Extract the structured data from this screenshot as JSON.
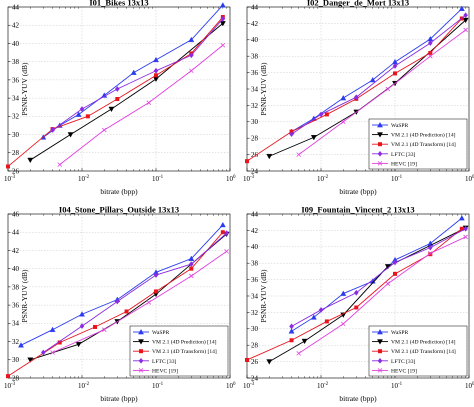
{
  "chart_data": [
    {
      "type": "line",
      "title": "I01_Bikes 13x13",
      "xlabel": "bitrate (bpp)",
      "ylabel": "PSNR-YUV (dB)",
      "xscale": "log",
      "xlim": [
        0.001,
        1
      ],
      "ylim": [
        26,
        44
      ],
      "xtick_base": "10",
      "xticks": [
        {
          "value": 0.001,
          "exp": "-3"
        },
        {
          "value": 0.01,
          "exp": "-2"
        },
        {
          "value": 0.1,
          "exp": "-1"
        },
        {
          "value": 1,
          "exp": "0"
        }
      ],
      "yticks": [
        26,
        28,
        30,
        32,
        34,
        36,
        38,
        40,
        42,
        44
      ],
      "grid": true,
      "legend_position": "none",
      "series": [
        {
          "name": "WaSPR",
          "color": "#2b3bf0",
          "marker": "triangle",
          "x": [
            0.003,
            0.005,
            0.009,
            0.02,
            0.05,
            0.1,
            0.3,
            0.8
          ],
          "y": [
            29.7,
            31.0,
            32.2,
            34.3,
            36.8,
            38.2,
            40.4,
            44.2
          ]
        },
        {
          "name": "VM 2.1 (4D Prediction) [14]",
          "color": "#000000",
          "marker": "triangle-down",
          "x": [
            0.002,
            0.007,
            0.025,
            0.1,
            0.8
          ],
          "y": [
            27.2,
            30.0,
            32.8,
            36.1,
            42.2
          ]
        },
        {
          "name": "VM 2.1 (4D Transform) [14]",
          "color": "#e8141e",
          "marker": "square",
          "x": [
            0.001,
            0.004,
            0.012,
            0.03,
            0.1,
            0.3,
            0.8
          ],
          "y": [
            26.5,
            30.6,
            32.0,
            33.9,
            36.5,
            38.9,
            42.9
          ]
        },
        {
          "name": "LFTC [33]",
          "color": "#8a2be2",
          "marker": "diamond",
          "x": [
            0.004,
            0.01,
            0.03,
            0.1,
            0.3,
            0.8
          ],
          "y": [
            30.5,
            32.8,
            35.0,
            37.0,
            38.7,
            42.7
          ]
        },
        {
          "name": "HEVC [19]",
          "color": "#e040e0",
          "marker": "x",
          "x": [
            0.005,
            0.02,
            0.08,
            0.3,
            0.8
          ],
          "y": [
            26.7,
            30.5,
            33.5,
            37.0,
            39.8
          ]
        }
      ]
    },
    {
      "type": "line",
      "title": "I02_Danger_de_Mort 13x13",
      "xlabel": "bitrate (bpp)",
      "ylabel": "PSNR-YUV (dB)",
      "xscale": "log",
      "xlim": [
        0.001,
        1
      ],
      "ylim": [
        24,
        44
      ],
      "xtick_base": "10",
      "xticks": [
        {
          "value": 0.001,
          "exp": "-3"
        },
        {
          "value": 0.01,
          "exp": "-2"
        },
        {
          "value": 0.1,
          "exp": "-1"
        },
        {
          "value": 1,
          "exp": "0"
        }
      ],
      "yticks": [
        24,
        26,
        28,
        30,
        32,
        34,
        36,
        38,
        40,
        42,
        44
      ],
      "grid": true,
      "legend_position": "bottom-right",
      "series": [
        {
          "name": "WaSPR",
          "color": "#2b3bf0",
          "marker": "triangle",
          "x": [
            0.004,
            0.008,
            0.02,
            0.05,
            0.1,
            0.3,
            0.8
          ],
          "y": [
            28.8,
            30.4,
            32.9,
            35.1,
            37.3,
            40.1,
            43.8
          ]
        },
        {
          "name": "VM 2.1 (4D Prediction) [14]",
          "color": "#000000",
          "marker": "triangle-down",
          "x": [
            0.002,
            0.008,
            0.03,
            0.1,
            0.9
          ],
          "y": [
            25.8,
            28.1,
            31.2,
            34.7,
            42.4
          ]
        },
        {
          "name": "VM 2.1 (4D Transform) [14]",
          "color": "#e8141e",
          "marker": "square",
          "x": [
            0.001,
            0.004,
            0.012,
            0.03,
            0.1,
            0.3,
            0.8
          ],
          "y": [
            25.2,
            28.8,
            30.9,
            32.8,
            35.9,
            38.4,
            42.6
          ]
        },
        {
          "name": "LFTC [33]",
          "color": "#8a2be2",
          "marker": "diamond",
          "x": [
            0.004,
            0.01,
            0.03,
            0.1,
            0.3,
            0.9
          ],
          "y": [
            28.5,
            30.9,
            33.0,
            36.8,
            39.6,
            43.0
          ]
        },
        {
          "name": "HEVC [19]",
          "color": "#e040e0",
          "marker": "x",
          "x": [
            0.005,
            0.02,
            0.08,
            0.3,
            0.9
          ],
          "y": [
            26.0,
            30.0,
            34.0,
            38.0,
            41.2
          ]
        }
      ]
    },
    {
      "type": "line",
      "title": "I04_Stone_Pillars_Outside 13x13",
      "xlabel": "bitrate (bpp)",
      "ylabel": "PSNR-YUV (dB)",
      "xscale": "log",
      "xlim": [
        0.001,
        1
      ],
      "ylim": [
        28,
        46
      ],
      "xtick_base": "10",
      "xticks": [
        {
          "value": 0.001,
          "exp": "-3"
        },
        {
          "value": 0.01,
          "exp": "-2"
        },
        {
          "value": 0.1,
          "exp": "-1"
        },
        {
          "value": 1,
          "exp": "0"
        }
      ],
      "yticks": [
        28,
        30,
        32,
        34,
        36,
        38,
        40,
        42,
        44,
        46
      ],
      "grid": true,
      "legend_position": "bottom-right",
      "series": [
        {
          "name": "WaSPR",
          "color": "#2b3bf0",
          "marker": "triangle",
          "x": [
            0.0015,
            0.004,
            0.01,
            0.03,
            0.1,
            0.3,
            0.8
          ],
          "y": [
            31.6,
            33.3,
            35.0,
            36.6,
            39.6,
            41.1,
            44.8
          ]
        },
        {
          "name": "VM 2.1 (4D Prediction) [14]",
          "color": "#000000",
          "marker": "triangle-down",
          "x": [
            0.002,
            0.009,
            0.03,
            0.1,
            0.9
          ],
          "y": [
            30.0,
            31.7,
            34.2,
            37.2,
            43.8
          ]
        },
        {
          "name": "VM 2.1 (4D Transform) [14]",
          "color": "#e8141e",
          "marker": "square",
          "x": [
            0.001,
            0.005,
            0.015,
            0.04,
            0.1,
            0.3,
            0.8
          ],
          "y": [
            28.2,
            31.9,
            33.6,
            35.3,
            37.5,
            40.0,
            44.0
          ]
        },
        {
          "name": "LFTC [33]",
          "color": "#8a2be2",
          "marker": "diamond",
          "x": [
            0.003,
            0.01,
            0.03,
            0.1,
            0.3,
            0.9
          ],
          "y": [
            30.8,
            33.7,
            36.4,
            39.3,
            40.5,
            43.9
          ]
        },
        {
          "name": "HEVC [19]",
          "color": "#e040e0",
          "marker": "x",
          "x": [
            0.004,
            0.02,
            0.08,
            0.3,
            0.9
          ],
          "y": [
            30.8,
            33.3,
            36.3,
            39.2,
            41.9
          ]
        }
      ]
    },
    {
      "type": "line",
      "title": "I09_Fountain_Vincent_2 13x13",
      "xlabel": "bitrate (bpp)",
      "ylabel": "PSNR-YUV (dB)",
      "xscale": "log",
      "xlim": [
        0.001,
        1
      ],
      "ylim": [
        24,
        44
      ],
      "xtick_base": "10",
      "xticks": [
        {
          "value": 0.001,
          "exp": "-3"
        },
        {
          "value": 0.01,
          "exp": "-2"
        },
        {
          "value": 0.1,
          "exp": "-1"
        },
        {
          "value": 1,
          "exp": "0"
        }
      ],
      "yticks": [
        24,
        26,
        28,
        30,
        32,
        34,
        36,
        38,
        40,
        42,
        44
      ],
      "grid": true,
      "legend_position": "bottom-right",
      "series": [
        {
          "name": "WaSPR",
          "color": "#2b3bf0",
          "marker": "triangle",
          "x": [
            0.004,
            0.008,
            0.02,
            0.05,
            0.1,
            0.3,
            0.8
          ],
          "y": [
            29.7,
            31.4,
            34.3,
            35.8,
            38.4,
            40.4,
            43.5
          ]
        },
        {
          "name": "VM 2.1 (4D Prediction) [14]",
          "color": "#000000",
          "marker": "triangle-down",
          "x": [
            0.002,
            0.006,
            0.02,
            0.08,
            0.9
          ],
          "y": [
            26.0,
            28.5,
            31.7,
            37.6,
            42.3
          ]
        },
        {
          "name": "VM 2.1 (4D Transform) [14]",
          "color": "#e8141e",
          "marker": "square",
          "x": [
            0.001,
            0.004,
            0.012,
            0.03,
            0.1,
            0.3,
            0.8
          ],
          "y": [
            26.2,
            28.6,
            30.9,
            32.6,
            36.7,
            39.1,
            42.2
          ]
        },
        {
          "name": "LFTC [33]",
          "color": "#8a2be2",
          "marker": "diamond",
          "x": [
            0.004,
            0.01,
            0.03,
            0.1,
            0.3,
            0.9
          ],
          "y": [
            30.3,
            32.3,
            34.4,
            38.1,
            39.9,
            42.2
          ]
        },
        {
          "name": "HEVC [19]",
          "color": "#e040e0",
          "marker": "x",
          "x": [
            0.005,
            0.02,
            0.08,
            0.3,
            0.9
          ],
          "y": [
            27.0,
            30.6,
            35.5,
            39.2,
            41.2
          ]
        }
      ]
    }
  ]
}
